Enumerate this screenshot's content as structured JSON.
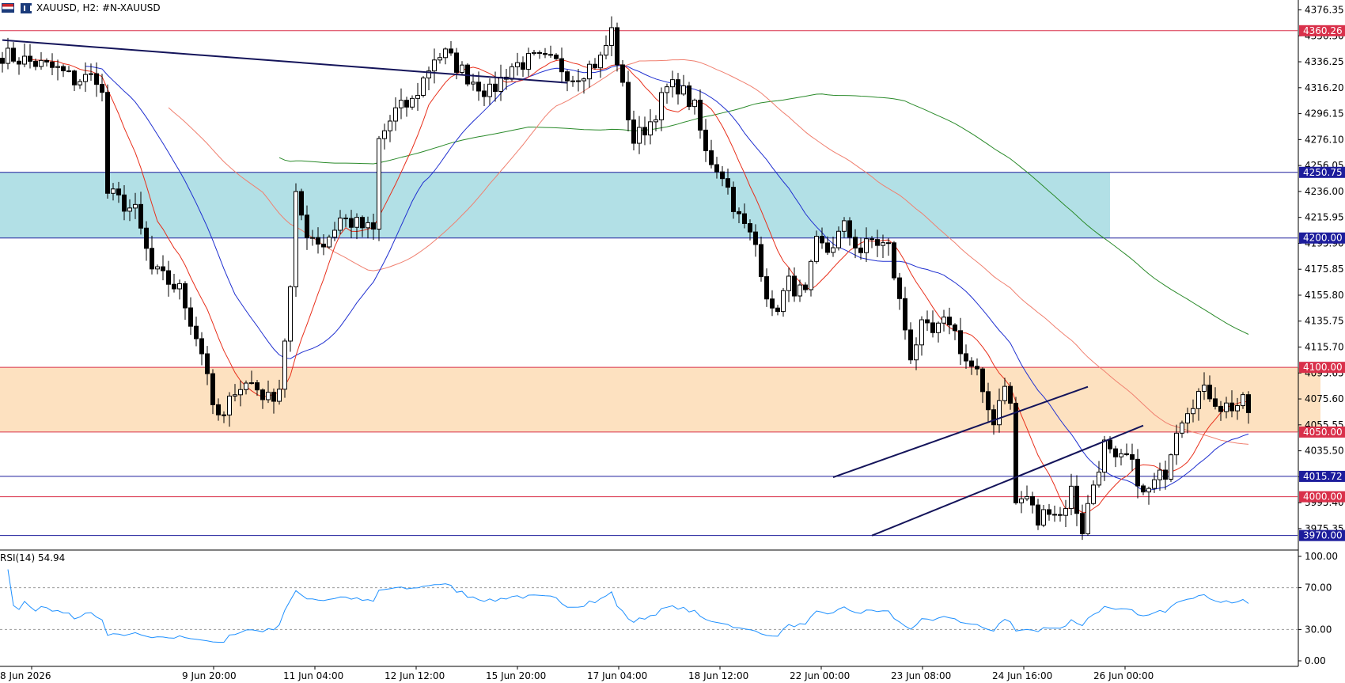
{
  "header": {
    "symbol_text": "XAUUSD, H2:  #N-XAUUSD"
  },
  "chart_data": {
    "type": "candlestick",
    "symbol": "XAUUSD",
    "timeframe": "H2",
    "price_axis": {
      "range": [
        3960,
        4384
      ],
      "ticks": [
        "4376.35",
        "4356.30",
        "4336.25",
        "4316.20",
        "4296.15",
        "4276.10",
        "4256.05",
        "4236.00",
        "4215.95",
        "4195.90",
        "4175.85",
        "4155.80",
        "4135.75",
        "4115.70",
        "4095.65",
        "4075.60",
        "4055.55",
        "4035.50",
        "4015.45",
        "3995.40",
        "3975.35"
      ]
    },
    "time_labels": [
      "8 Jun 2026",
      "9 Jun 20:00",
      "11 Jun 04:00",
      "12 Jun 12:00",
      "15 Jun 20:00",
      "17 Jun 04:00",
      "18 Jun 12:00",
      "22 Jun 00:00",
      "23 Jun 08:00",
      "24 Jun 16:00",
      "26 Jun 00:00"
    ],
    "levels": [
      {
        "price": 4360.26,
        "label": "4360.26",
        "color": "#d9304a"
      },
      {
        "price": 4250.75,
        "label": "4250.75",
        "color": "#1d1d9c"
      },
      {
        "price": 4200.0,
        "label": "4200.00",
        "color": "#1d1d9c"
      },
      {
        "price": 4100.0,
        "label": "4100.00",
        "color": "#d9304a"
      },
      {
        "price": 4050.0,
        "label": "4050.00",
        "color": "#d9304a"
      },
      {
        "price": 4015.72,
        "label": "4015.72",
        "color": "#1d1d9c"
      },
      {
        "price": 4000.0,
        "label": "4000.00",
        "color": "#d9304a"
      },
      {
        "price": 3970.0,
        "label": "3970.00",
        "color": "#1d1d9c"
      }
    ],
    "zones": [
      {
        "from": 4200,
        "to": 4250.75,
        "color": "#b2e0e6",
        "bar_end": 200
      },
      {
        "from": 4050,
        "to": 4100,
        "color": "#fde1c0",
        "bar_end": 238
      }
    ],
    "close_path": [
      [
        0,
        4342
      ],
      [
        6,
        4335
      ],
      [
        10,
        4330
      ],
      [
        13,
        4322
      ],
      [
        17,
        4325
      ],
      [
        18,
        4310
      ],
      [
        19,
        4235
      ],
      [
        24,
        4220
      ],
      [
        27,
        4175
      ],
      [
        32,
        4160
      ],
      [
        35,
        4125
      ],
      [
        37,
        4098
      ],
      [
        38,
        4065
      ],
      [
        40,
        4060
      ],
      [
        42,
        4085
      ],
      [
        45,
        4088
      ],
      [
        48,
        4075
      ],
      [
        50,
        4085
      ],
      [
        52,
        4160
      ],
      [
        53,
        4230
      ],
      [
        55,
        4205
      ],
      [
        58,
        4195
      ],
      [
        61,
        4215
      ],
      [
        63,
        4212
      ],
      [
        67,
        4205
      ],
      [
        68,
        4275
      ],
      [
        71,
        4298
      ],
      [
        74,
        4305
      ],
      [
        78,
        4340
      ],
      [
        80,
        4342
      ],
      [
        84,
        4325
      ],
      [
        88,
        4312
      ],
      [
        92,
        4333
      ],
      [
        96,
        4338
      ],
      [
        100,
        4335
      ],
      [
        103,
        4325
      ],
      [
        105,
        4330
      ],
      [
        108,
        4338
      ],
      [
        110,
        4360
      ],
      [
        112,
        4315
      ],
      [
        114,
        4275
      ],
      [
        117,
        4290
      ],
      [
        120,
        4315
      ],
      [
        122,
        4318
      ],
      [
        125,
        4300
      ],
      [
        127,
        4265
      ],
      [
        130,
        4250
      ],
      [
        133,
        4215
      ],
      [
        136,
        4195
      ],
      [
        139,
        4140
      ],
      [
        142,
        4165
      ],
      [
        145,
        4155
      ],
      [
        147,
        4195
      ],
      [
        149,
        4190
      ],
      [
        152,
        4208
      ],
      [
        155,
        4190
      ],
      [
        157,
        4198
      ],
      [
        160,
        4193
      ],
      [
        162,
        4150
      ],
      [
        164,
        4110
      ],
      [
        166,
        4130
      ],
      [
        168,
        4125
      ],
      [
        171,
        4137
      ],
      [
        174,
        4105
      ],
      [
        176,
        4095
      ],
      [
        177,
        4075
      ],
      [
        179,
        4060
      ],
      [
        181,
        4090
      ],
      [
        182,
        4070
      ],
      [
        183,
        3995
      ],
      [
        185,
        4000
      ],
      [
        187,
        3980
      ],
      [
        189,
        3993
      ],
      [
        191,
        3985
      ],
      [
        193,
        4005
      ],
      [
        195,
        3975
      ],
      [
        197,
        4010
      ],
      [
        199,
        4040
      ],
      [
        201,
        4025
      ],
      [
        203,
        4030
      ],
      [
        205,
        4015
      ],
      [
        206,
        4000
      ],
      [
        208,
        4010
      ],
      [
        210,
        4020
      ],
      [
        212,
        4055
      ],
      [
        214,
        4070
      ],
      [
        216,
        4080
      ],
      [
        218,
        4080
      ],
      [
        220,
        4070
      ],
      [
        222,
        4070
      ],
      [
        224,
        4072
      ],
      [
        225,
        4065
      ]
    ],
    "rsi": {
      "label": "RSI(14) 54.94",
      "period": 14,
      "value": 54.94,
      "levels": [
        30,
        70
      ],
      "range": [
        0,
        100
      ],
      "ticks": [
        "100.00",
        "70.00",
        "30.00",
        "0.00"
      ]
    },
    "ma_colors": {
      "ma20": "#e8301c",
      "ma50": "#2030d0",
      "ma100": "#f08070",
      "ma200": "#2a8a2a"
    },
    "channel_color": "#14145a"
  }
}
